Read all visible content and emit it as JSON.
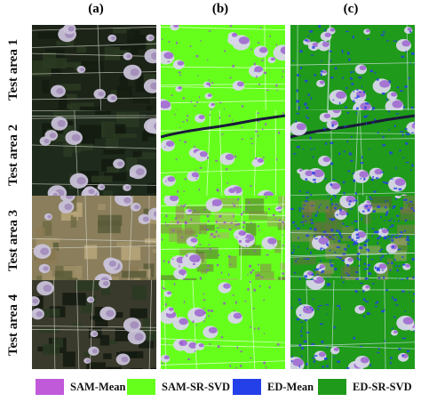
{
  "columns": [
    {
      "label": "(a)"
    },
    {
      "label": "(b)"
    },
    {
      "label": "(c)"
    }
  ],
  "rows": [
    {
      "label": "Test area 1"
    },
    {
      "label": "Test area 2"
    },
    {
      "label": "Test area 3"
    },
    {
      "label": "Test area 4"
    }
  ],
  "legend": [
    {
      "label": "SAM-Mean",
      "color": "#c05ad8"
    },
    {
      "label": "SAM-SR-SVD",
      "color": "#66ff1c"
    },
    {
      "label": "ED-Mean",
      "color": "#2440e8"
    },
    {
      "label": "ED-SR-SVD",
      "color": "#1f9a1a"
    }
  ]
}
